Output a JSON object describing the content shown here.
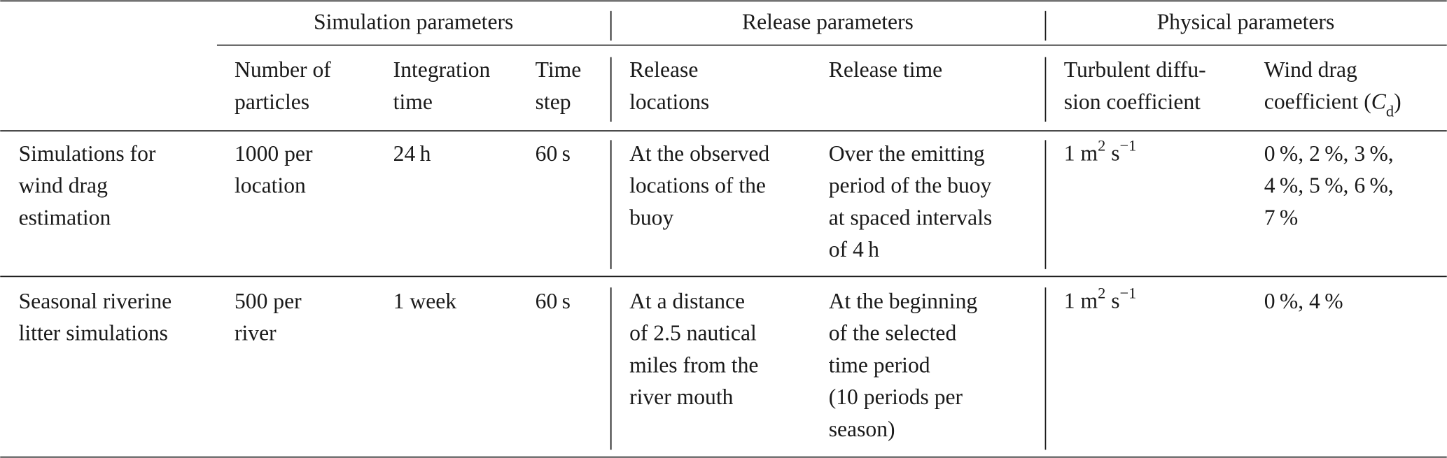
{
  "table": {
    "groups": [
      "Simulation parameters",
      "Release parameters",
      "Physical parameters"
    ],
    "columns": [
      [
        "Number of",
        "particles"
      ],
      [
        "Integration",
        "time"
      ],
      [
        "Time",
        "step"
      ],
      [
        "Release",
        "locations"
      ],
      [
        "Release time"
      ],
      [
        "Turbulent diffu-",
        "sion coefficient"
      ],
      [
        "Wind drag",
        [
          {
            "text": "coefficient ("
          },
          {
            "text": "C",
            "style": "italic"
          },
          {
            "text": "d",
            "style": "sub"
          },
          {
            "text": ")"
          }
        ]
      ]
    ],
    "rows": [
      {
        "label": [
          "Simulations for",
          "wind drag",
          "estimation"
        ],
        "cells": [
          [
            "1000 per",
            "location"
          ],
          [
            "24 h"
          ],
          [
            "60 s"
          ],
          [
            "At the observed",
            "locations of the",
            "buoy"
          ],
          [
            "Over the emitting",
            "period of the buoy",
            "at spaced intervals",
            "of 4 h"
          ],
          [
            [
              {
                "text": "1 m"
              },
              {
                "text": "2",
                "style": "sup"
              },
              {
                "text": " s"
              },
              {
                "text": "−1",
                "style": "sup"
              }
            ]
          ],
          [
            "0 %, 2 %, 3 %,",
            "4 %, 5 %, 6 %,",
            "7 %"
          ]
        ]
      },
      {
        "label": [
          "Seasonal riverine",
          "litter simulations"
        ],
        "cells": [
          [
            "500 per",
            "river"
          ],
          [
            "1 week"
          ],
          [
            "60 s"
          ],
          [
            "At a distance",
            "of 2.5 nautical",
            "miles from the",
            "river mouth"
          ],
          [
            "At the beginning",
            "of the selected",
            "time period",
            "(10 periods per",
            "season)"
          ],
          [
            [
              {
                "text": "1 m"
              },
              {
                "text": "2",
                "style": "sup"
              },
              {
                "text": " s"
              },
              {
                "text": "−1",
                "style": "sup"
              }
            ]
          ],
          [
            "0 %, 4 %"
          ]
        ]
      }
    ]
  }
}
